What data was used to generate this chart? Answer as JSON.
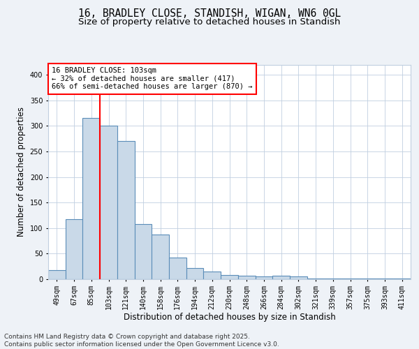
{
  "title_line1": "16, BRADLEY CLOSE, STANDISH, WIGAN, WN6 0GL",
  "title_line2": "Size of property relative to detached houses in Standish",
  "xlabel": "Distribution of detached houses by size in Standish",
  "ylabel": "Number of detached properties",
  "categories": [
    "49sqm",
    "67sqm",
    "85sqm",
    "103sqm",
    "121sqm",
    "140sqm",
    "158sqm",
    "176sqm",
    "194sqm",
    "212sqm",
    "230sqm",
    "248sqm",
    "266sqm",
    "284sqm",
    "302sqm",
    "321sqm",
    "339sqm",
    "357sqm",
    "375sqm",
    "393sqm",
    "411sqm"
  ],
  "values": [
    18,
    117,
    315,
    300,
    270,
    108,
    88,
    42,
    22,
    15,
    8,
    7,
    6,
    7,
    5,
    2,
    2,
    2,
    2,
    1,
    2
  ],
  "bar_color": "#c9d9e8",
  "bar_edge_color": "#5b8db8",
  "vline_color": "red",
  "annotation_text": "16 BRADLEY CLOSE: 103sqm\n← 32% of detached houses are smaller (417)\n66% of semi-detached houses are larger (870) →",
  "annotation_box_color": "red",
  "ylim": [
    0,
    420
  ],
  "yticks": [
    0,
    50,
    100,
    150,
    200,
    250,
    300,
    350,
    400
  ],
  "background_color": "#eef2f7",
  "plot_background": "#ffffff",
  "grid_color": "#c0cfe0",
  "footer_text": "Contains HM Land Registry data © Crown copyright and database right 2025.\nContains public sector information licensed under the Open Government Licence v3.0.",
  "title_fontsize": 10.5,
  "subtitle_fontsize": 9.5,
  "axis_label_fontsize": 8.5,
  "tick_fontsize": 7,
  "annotation_fontsize": 7.5,
  "footer_fontsize": 6.5
}
